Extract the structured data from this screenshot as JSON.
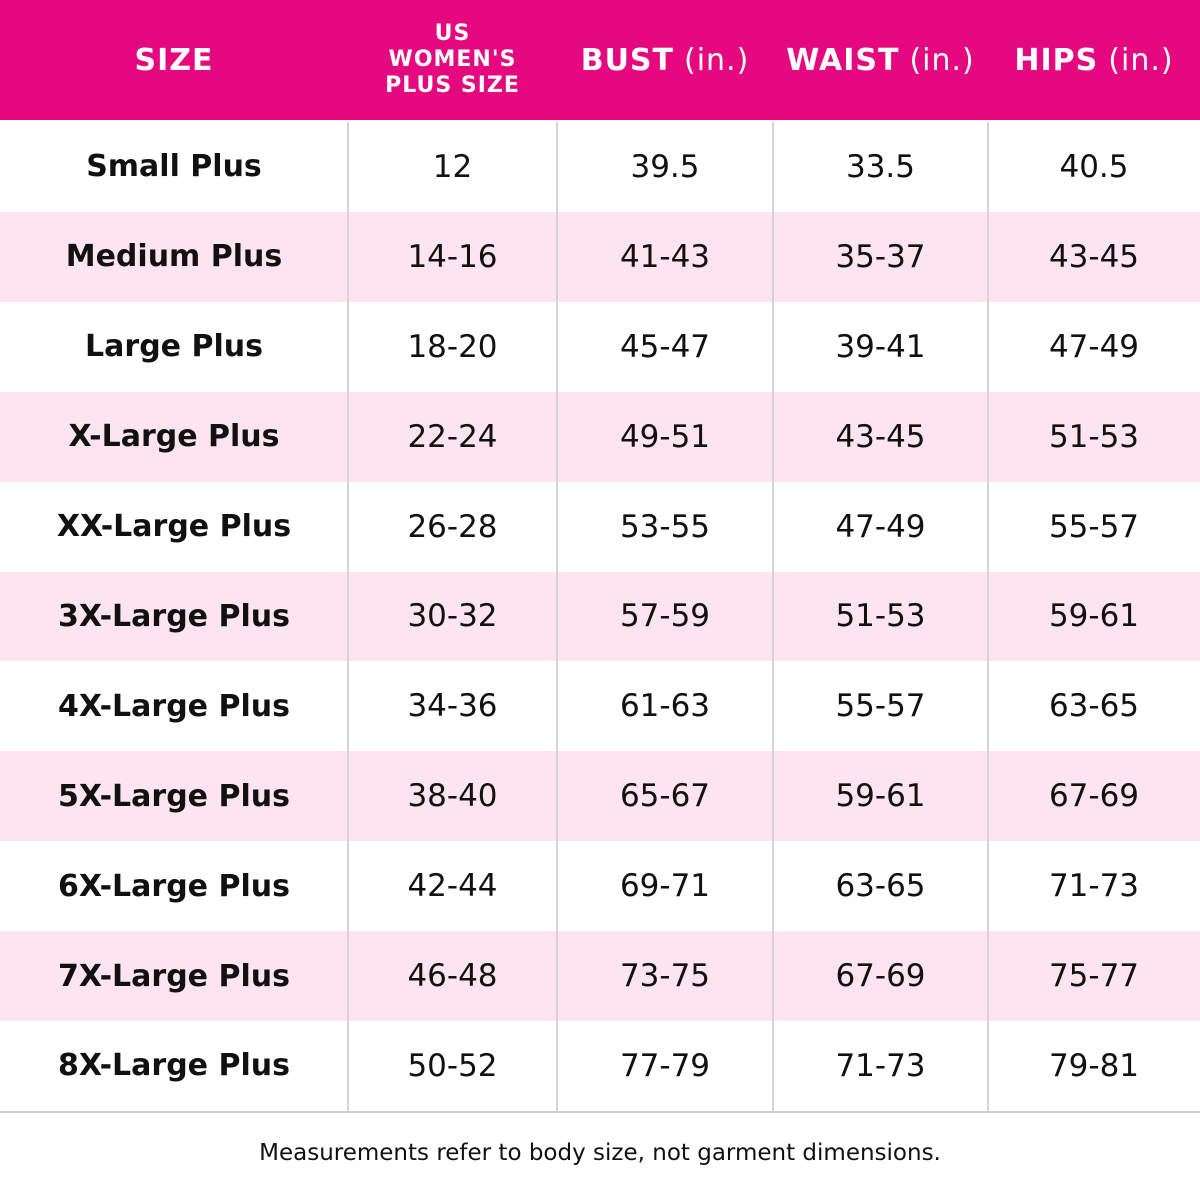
{
  "table": {
    "header": [
      {
        "label": "SIZE"
      },
      {
        "label": "US WOMEN'S PLUS SIZE"
      },
      {
        "label": "BUST",
        "unit": "(in.)"
      },
      {
        "label": "WAIST",
        "unit": "(in.)"
      },
      {
        "label": "HIPS",
        "unit": "(in.)"
      }
    ],
    "rows": [
      [
        "Small Plus",
        "12",
        "39.5",
        "33.5",
        "40.5"
      ],
      [
        "Medium Plus",
        "14-16",
        "41-43",
        "35-37",
        "43-45"
      ],
      [
        "Large Plus",
        "18-20",
        "45-47",
        "39-41",
        "47-49"
      ],
      [
        "X-Large Plus",
        "22-24",
        "49-51",
        "43-45",
        "51-53"
      ],
      [
        "XX-Large Plus",
        "26-28",
        "53-55",
        "47-49",
        "55-57"
      ],
      [
        "3X-Large Plus",
        "30-32",
        "57-59",
        "51-53",
        "59-61"
      ],
      [
        "4X-Large Plus",
        "34-36",
        "61-63",
        "55-57",
        "63-65"
      ],
      [
        "5X-Large Plus",
        "38-40",
        "65-67",
        "59-61",
        "67-69"
      ],
      [
        "6X-Large Plus",
        "42-44",
        "69-71",
        "63-65",
        "71-73"
      ],
      [
        "7X-Large Plus",
        "46-48",
        "73-75",
        "67-69",
        "75-77"
      ],
      [
        "8X-Large Plus",
        "50-52",
        "77-79",
        "71-73",
        "79-81"
      ]
    ],
    "footnote": "Measurements refer to body size, not garment dimensions."
  }
}
